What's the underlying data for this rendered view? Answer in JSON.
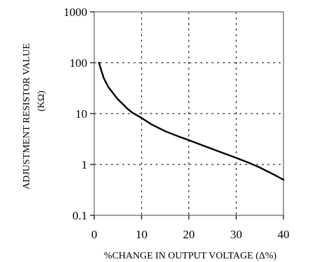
{
  "chart_data": {
    "type": "line",
    "xlabel": "%CHANGE IN OUTPUT VOLTAGE (Δ%)",
    "ylabel": "ADJUSTMENT RESISTOR VALUE",
    "ylabel_unit": "(KΩ)",
    "xlim": [
      0,
      40
    ],
    "ylim": [
      0.1,
      1000
    ],
    "yscale": "log",
    "grid": "dashed",
    "xticks": [
      0,
      10,
      20,
      30,
      40
    ],
    "xtick_labels": [
      "0",
      "10",
      "20",
      "30",
      "40"
    ],
    "yticks": [
      0.1,
      1,
      10,
      100,
      1000
    ],
    "ytick_labels": [
      "0.1",
      "1",
      "10",
      "100",
      "1000"
    ],
    "series": [
      {
        "color": "#000000",
        "x": [
          1,
          1.5,
          2,
          3,
          4,
          5,
          6,
          7,
          8,
          9,
          10,
          12,
          15,
          18,
          20,
          23,
          26,
          30,
          33,
          35,
          38,
          40
        ],
        "y": [
          100,
          70,
          50,
          33,
          25,
          19,
          15.5,
          12.5,
          10.5,
          9.3,
          8.2,
          6.2,
          4.5,
          3.5,
          3.0,
          2.35,
          1.85,
          1.35,
          1.05,
          0.87,
          0.63,
          0.5
        ]
      }
    ]
  }
}
